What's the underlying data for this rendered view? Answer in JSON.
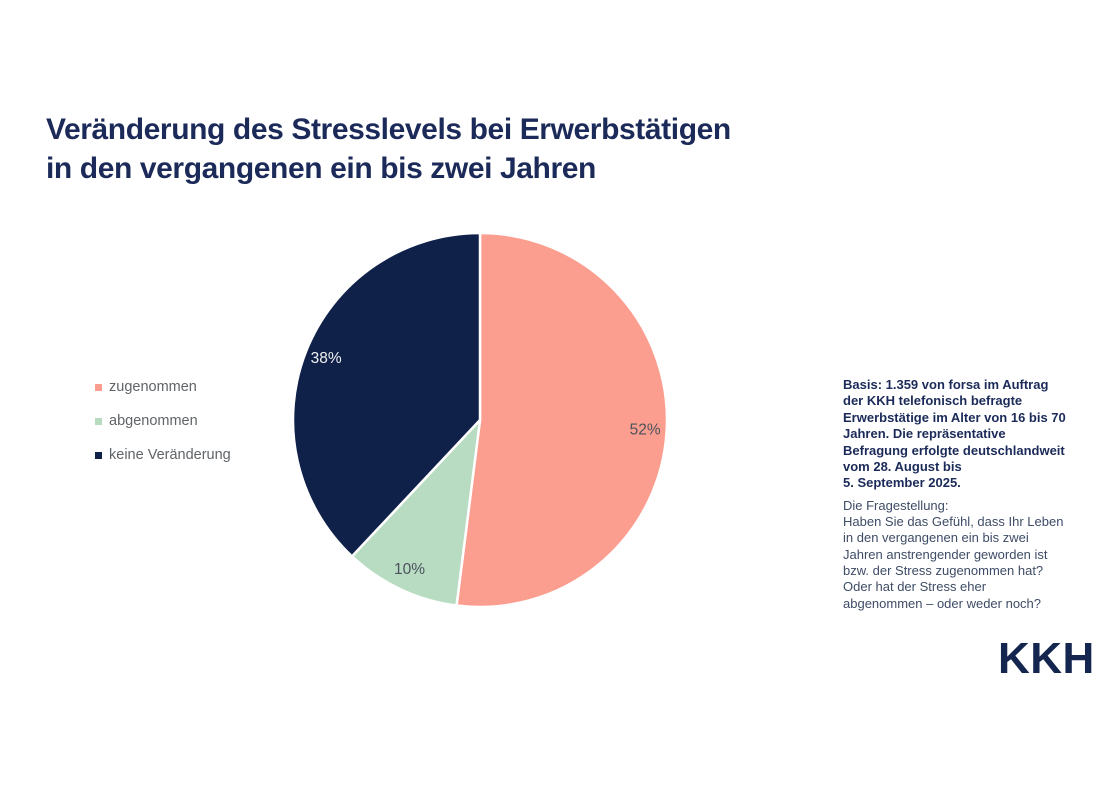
{
  "page": {
    "background": "#FFFFFF"
  },
  "title": {
    "text": "Veränderung des Stresslevels bei Erwerbstätigen\nin den vergangenen ein bis zwei Jahren",
    "color": "#1B2A59"
  },
  "legend": {
    "position": "left",
    "text_color": "#5F6468",
    "items": [
      {
        "label": "zugenommen",
        "color": "#FB9E8F"
      },
      {
        "label": "abgenommen",
        "color": "#B7DCC2"
      },
      {
        "label": "keine Veränderung",
        "color": "#0F2148"
      }
    ]
  },
  "chart_data": {
    "type": "pie",
    "title": "Veränderung des Stresslevels bei Erwerbstätigen in den vergangenen ein bis zwei Jahren",
    "categories": [
      "zugenommen",
      "abgenommen",
      "keine Veränderung"
    ],
    "values": [
      52,
      10,
      38
    ],
    "unit": "%",
    "data_labels": [
      "52%",
      "10%",
      "38%"
    ],
    "colors": [
      "#FB9E8F",
      "#B7DCC2",
      "#0F2148"
    ],
    "label_colors": [
      "#4C525C",
      "#4C525C",
      "#F1F2F3"
    ],
    "start_angle_deg": 0,
    "direction": "clockwise",
    "slice_gap_color": "#FFFFFF",
    "legend_position": "left"
  },
  "notes": {
    "basis": "Basis: 1.359 von forsa im Auftrag\nder KKH telefonisch befragte\nErwerbstätige im Alter von 16 bis 70\nJahren. Die repräsentative\nBefragung erfolgte deutschlandweit\nvom 28. August bis\n5. September 2025.",
    "basis_color": "#1B2A59",
    "question": "Die Fragestellung:\nHaben Sie das Gefühl, dass Ihr Leben\nin den vergangenen ein bis zwei\nJahren anstrengender geworden ist\nbzw. der Stress zugenommen hat?\nOder hat der Stress eher\nabgenommen – oder weder noch?",
    "question_color": "#3E4C66"
  },
  "logo": {
    "text": "KKH",
    "color": "#14264F"
  }
}
